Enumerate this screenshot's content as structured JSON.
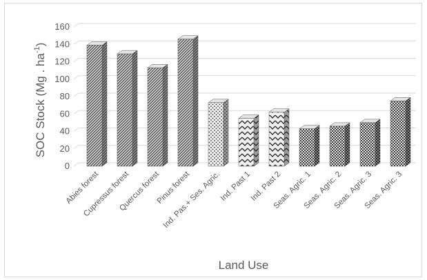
{
  "chart_data": {
    "type": "bar",
    "style": "3d-column",
    "categories": [
      "Abies forest",
      "Cupressus forest",
      "Quercus forest",
      "Pinus forest",
      "Ind. Pas.+ Ses. Agric.",
      "Ind. Past 1",
      "Ind. Past 2",
      "Seas. Agric. 1",
      "Seas. Agric. 2",
      "Seas. Agric. 3",
      "Seas. Agric. 3"
    ],
    "values": [
      139,
      129,
      113,
      146,
      73,
      55,
      62,
      43,
      46,
      50,
      75
    ],
    "patterns": [
      "hatch",
      "hatch",
      "hatch",
      "hatch",
      "dots",
      "zigzag",
      "zigzag",
      "checker",
      "checker",
      "checker",
      "checker"
    ],
    "title": "",
    "xlabel": "Land Use",
    "ylabel_main": "SOC Stock (Mg . ha",
    "ylabel_sup": "-1",
    "ylabel_close": ")",
    "yticks": [
      0,
      20,
      40,
      60,
      80,
      100,
      120,
      140,
      160
    ],
    "ylim": [
      0,
      160
    ],
    "grid": true,
    "legend": "none",
    "colors": {
      "bar_front": "#d0d0d0",
      "bar_side": "#8c8c8c",
      "bar_top": "#e4e4e4",
      "pattern_ink": "#303030",
      "grid": "#d9d9d9",
      "text": "#595959"
    }
  }
}
